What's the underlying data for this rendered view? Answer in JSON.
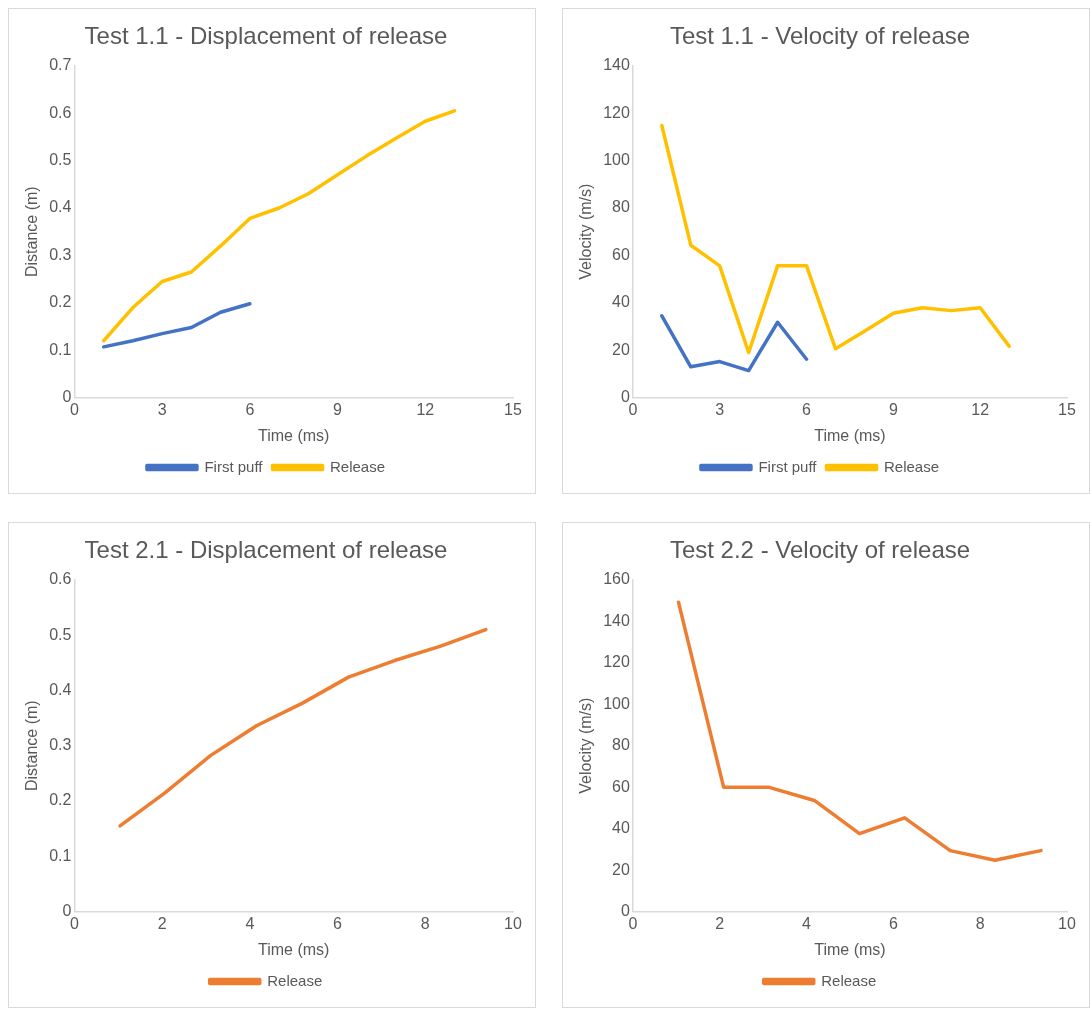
{
  "chart_data": [
    {
      "type": "line",
      "title": "Test 1.1 - Displacement of release",
      "xlabel": "Time (ms)",
      "ylabel": "Distance (m)",
      "xlim": [
        0,
        15
      ],
      "xticks": [
        0,
        3,
        6,
        9,
        12,
        15
      ],
      "ylim": [
        0,
        0.7
      ],
      "yticks": [
        0,
        0.1,
        0.2,
        0.3,
        0.4,
        0.5,
        0.6,
        0.7
      ],
      "legend": "bottom",
      "marker": "none",
      "series": [
        {
          "name": "First puff",
          "color": "#4472c4",
          "x": [
            1,
            2,
            3,
            4,
            5,
            6
          ],
          "values": [
            0.107,
            0.12,
            0.135,
            0.148,
            0.18,
            0.198
          ]
        },
        {
          "name": "Release",
          "color": "#ffc000",
          "x": [
            1,
            2,
            3,
            4,
            5,
            6,
            7,
            8,
            9,
            10,
            11,
            12,
            13
          ],
          "values": [
            0.12,
            0.19,
            0.245,
            0.265,
            0.32,
            0.378,
            0.4,
            0.43,
            0.47,
            0.51,
            0.547,
            0.583,
            0.605
          ]
        }
      ]
    },
    {
      "type": "line",
      "title": "Test 1.1 - Velocity of release",
      "xlabel": "Time (ms)",
      "ylabel": "Velocity (m/s)",
      "xlim": [
        0,
        15
      ],
      "xticks": [
        0,
        3,
        6,
        9,
        12,
        15
      ],
      "ylim": [
        0,
        140
      ],
      "yticks": [
        0,
        20,
        40,
        60,
        80,
        100,
        120,
        140
      ],
      "legend": "bottom",
      "marker": "none",
      "series": [
        {
          "name": "First puff",
          "color": "#4472c4",
          "x": [
            1,
            2,
            3,
            4,
            5,
            6
          ],
          "values": [
            34.5,
            13,
            15.2,
            11.4,
            31.8,
            16.2
          ]
        },
        {
          "name": "Release",
          "color": "#ffc000",
          "x": [
            1,
            2,
            3,
            4,
            5,
            6,
            7,
            8,
            9,
            10,
            11,
            12,
            13
          ],
          "values": [
            114.8,
            64.3,
            55.6,
            19,
            55.6,
            55.6,
            20.6,
            28,
            35.6,
            37.9,
            36.7,
            37.9,
            21.7
          ]
        }
      ]
    },
    {
      "type": "line",
      "title": "Test 2.1 - Displacement of release",
      "xlabel": "Time (ms)",
      "ylabel": "Distance (m)",
      "xlim": [
        0,
        10
      ],
      "xticks": [
        0,
        2,
        4,
        6,
        8,
        10
      ],
      "ylim": [
        0,
        0.6
      ],
      "yticks": [
        0,
        0.1,
        0.2,
        0.3,
        0.4,
        0.5,
        0.6
      ],
      "legend": "bottom",
      "marker": "none",
      "series": [
        {
          "name": "Release",
          "color": "#ed7d31",
          "x": [
            1.04,
            2.07,
            3.1,
            4.15,
            5.2,
            6.25,
            7.3,
            8.35,
            9.38
          ],
          "values": [
            0.155,
            0.215,
            0.282,
            0.336,
            0.377,
            0.424,
            0.454,
            0.48,
            0.51
          ]
        }
      ]
    },
    {
      "type": "line",
      "title": "Test 2.2 - Velocity of release",
      "xlabel": "Time (ms)",
      "ylabel": "Velocity (m/s)",
      "xlim": [
        0,
        10
      ],
      "xticks": [
        0,
        2,
        4,
        6,
        8,
        10
      ],
      "ylim": [
        0,
        160
      ],
      "yticks": [
        0,
        20,
        40,
        60,
        80,
        100,
        120,
        140,
        160
      ],
      "legend": "bottom",
      "marker": "none",
      "series": [
        {
          "name": "Release",
          "color": "#ed7d31",
          "x": [
            1.05,
            2.09,
            3.12,
            4.18,
            5.22,
            6.26,
            7.31,
            8.34,
            9.4
          ],
          "values": [
            149.2,
            60,
            60,
            53.6,
            37.6,
            45.2,
            29.4,
            24.8,
            29.4
          ]
        }
      ]
    }
  ]
}
